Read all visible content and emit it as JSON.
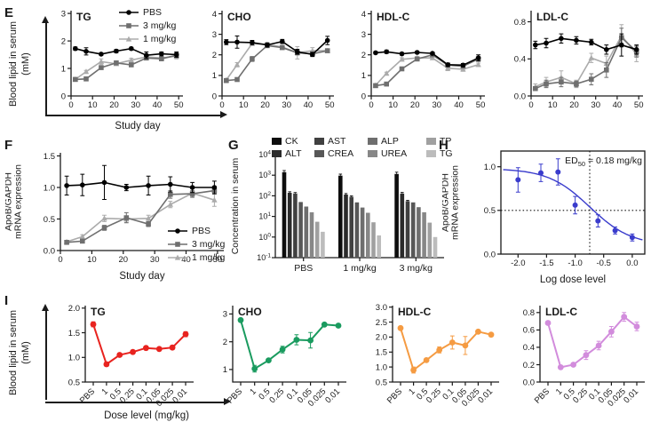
{
  "figure": {
    "panel_letters": {
      "E": "E",
      "F": "F",
      "G": "G",
      "H": "H",
      "I": "I"
    }
  },
  "panels": {
    "E": {
      "ylabel_line1": "Blood lipid in serum",
      "ylabel_line2": "(mM)",
      "xlabel": "Study day"
    },
    "I": {
      "ylabel_line1": "Blood lipid in serum",
      "ylabel_line2": "(mM)",
      "xlabel": "Dose level (mg/kg)"
    }
  },
  "legends": {
    "lipid": {
      "items": [
        {
          "label": "PBS",
          "color": "#000000",
          "marker": "circle"
        },
        {
          "label": "3 mg/kg",
          "color": "#6f6f6f",
          "marker": "square"
        },
        {
          "label": "1 mg/kg",
          "color": "#ababab",
          "marker": "triangle"
        }
      ]
    },
    "serum": {
      "items": [
        {
          "label": "CK",
          "color": "#0d0d0d"
        },
        {
          "label": "AST",
          "color": "#404040"
        },
        {
          "label": "ALP",
          "color": "#6e6e6e"
        },
        {
          "label": "TP",
          "color": "#a0a0a0"
        },
        {
          "label": "ALT",
          "color": "#2b2b2b"
        },
        {
          "label": "CREA",
          "color": "#575757"
        },
        {
          "label": "UREA",
          "color": "#878787"
        },
        {
          "label": "TG",
          "color": "#bcbcbc"
        }
      ]
    }
  },
  "chart_data": [
    {
      "id": "e_tg",
      "type": "line",
      "title": "TG",
      "title_color": "#e8231f",
      "x": [
        2,
        7,
        14,
        21,
        28,
        35,
        42,
        49
      ],
      "xlim": [
        0,
        52
      ],
      "xticks": [
        0,
        10,
        20,
        30,
        40,
        50
      ],
      "ylim": [
        0,
        3.1
      ],
      "yticks": [
        0,
        1,
        2,
        3
      ],
      "ydec": 0,
      "series": [
        {
          "name": "PBS",
          "color": "#000000",
          "marker": "circle",
          "values": [
            1.72,
            1.62,
            1.52,
            1.63,
            1.72,
            1.48,
            1.53,
            1.5
          ],
          "errors": [
            0.06,
            0.13,
            0.04,
            0.06,
            0.05,
            0.12,
            0.07,
            0.1
          ]
        },
        {
          "name": "3 mg/kg",
          "color": "#6f6f6f",
          "marker": "square",
          "values": [
            0.6,
            0.62,
            1.03,
            1.2,
            1.13,
            1.38,
            1.35,
            1.48
          ],
          "errors": [
            0.03,
            0.03,
            0.05,
            0.06,
            0.05,
            0.05,
            0.05,
            0.08
          ]
        },
        {
          "name": "1 mg/kg",
          "color": "#ababab",
          "marker": "triangle",
          "values": [
            0.6,
            0.88,
            1.25,
            1.17,
            1.3,
            1.42,
            1.38,
            1.45
          ],
          "errors": [
            0.03,
            0.05,
            0.1,
            0.06,
            0.07,
            0.05,
            0.06,
            0.1
          ]
        }
      ]
    },
    {
      "id": "e_cho",
      "type": "line",
      "title": "CHO",
      "title_color": "#1a9b5f",
      "x": [
        2,
        7,
        14,
        21,
        28,
        35,
        42,
        49
      ],
      "xlim": [
        0,
        52
      ],
      "xticks": [
        0,
        10,
        20,
        30,
        40,
        50
      ],
      "ylim": [
        0,
        4.15
      ],
      "yticks": [
        0,
        1,
        2,
        3,
        4
      ],
      "ydec": 0,
      "series": [
        {
          "name": "PBS",
          "color": "#000000",
          "marker": "circle",
          "values": [
            2.62,
            2.62,
            2.6,
            2.48,
            2.65,
            2.15,
            2.02,
            2.7
          ],
          "errors": [
            0.12,
            0.3,
            0.1,
            0.1,
            0.1,
            0.12,
            0.1,
            0.2
          ]
        },
        {
          "name": "3 mg/kg",
          "color": "#6f6f6f",
          "marker": "square",
          "values": [
            0.75,
            0.8,
            1.8,
            2.45,
            2.35,
            2.1,
            2.05,
            2.2
          ],
          "errors": [
            0.05,
            0.05,
            0.12,
            0.1,
            0.08,
            0.1,
            0.08,
            0.08
          ]
        },
        {
          "name": "1 mg/kg",
          "color": "#ababab",
          "marker": "triangle",
          "values": [
            0.78,
            1.52,
            2.55,
            2.5,
            2.38,
            2.1,
            2.2,
            2.2
          ],
          "errors": [
            0.05,
            0.1,
            0.1,
            0.08,
            0.08,
            0.3,
            0.15,
            0.08
          ]
        }
      ]
    },
    {
      "id": "e_hdl",
      "type": "line",
      "title": "HDL-C",
      "title_color": "#f59b42",
      "x": [
        2,
        7,
        14,
        21,
        28,
        35,
        42,
        49
      ],
      "xlim": [
        0,
        52
      ],
      "xticks": [
        0,
        10,
        20,
        30,
        40,
        50
      ],
      "ylim": [
        0,
        4.15
      ],
      "yticks": [
        0,
        1,
        2,
        3,
        4
      ],
      "ydec": 0,
      "series": [
        {
          "name": "PBS",
          "color": "#000000",
          "marker": "circle",
          "values": [
            2.1,
            2.15,
            2.05,
            2.12,
            2.07,
            1.52,
            1.5,
            1.85
          ],
          "errors": [
            0.06,
            0.08,
            0.05,
            0.06,
            0.05,
            0.08,
            0.08,
            0.15
          ]
        },
        {
          "name": "3 mg/kg",
          "color": "#6f6f6f",
          "marker": "square",
          "values": [
            0.5,
            0.58,
            1.32,
            1.8,
            2.0,
            1.5,
            1.45,
            1.8
          ],
          "errors": [
            0.04,
            0.04,
            0.08,
            0.06,
            0.06,
            0.08,
            0.08,
            0.1
          ]
        },
        {
          "name": "1 mg/kg",
          "color": "#ababab",
          "marker": "triangle",
          "values": [
            0.52,
            1.1,
            1.78,
            1.85,
            1.85,
            1.35,
            1.3,
            1.52
          ],
          "errors": [
            0.04,
            0.06,
            0.08,
            0.06,
            0.06,
            0.12,
            0.1,
            0.08
          ]
        }
      ]
    },
    {
      "id": "e_ldl",
      "type": "line",
      "title": "LDL-C",
      "title_color": "#d28cdc",
      "x": [
        2,
        7,
        14,
        21,
        28,
        35,
        42,
        49
      ],
      "xlim": [
        0,
        52
      ],
      "xticks": [
        0,
        10,
        20,
        30,
        40,
        50
      ],
      "ylim": [
        0,
        0.92
      ],
      "yticks": [
        0,
        0.4,
        0.8
      ],
      "ydec": 1,
      "series": [
        {
          "name": "PBS",
          "color": "#000000",
          "marker": "circle",
          "values": [
            0.55,
            0.57,
            0.62,
            0.6,
            0.58,
            0.5,
            0.55,
            0.5
          ],
          "errors": [
            0.04,
            0.05,
            0.05,
            0.04,
            0.03,
            0.05,
            0.12,
            0.05
          ]
        },
        {
          "name": "3 mg/kg",
          "color": "#6f6f6f",
          "marker": "square",
          "values": [
            0.08,
            0.13,
            0.15,
            0.13,
            0.18,
            0.28,
            0.63,
            0.48
          ],
          "errors": [
            0.02,
            0.04,
            0.05,
            0.03,
            0.06,
            0.08,
            0.1,
            0.06
          ]
        },
        {
          "name": "1 mg/kg",
          "color": "#ababab",
          "marker": "triangle",
          "values": [
            0.1,
            0.15,
            0.2,
            0.13,
            0.41,
            0.35,
            0.65,
            0.45
          ],
          "errors": [
            0.03,
            0.05,
            0.07,
            0.04,
            0.05,
            0.08,
            0.12,
            0.08
          ]
        }
      ]
    },
    {
      "id": "f",
      "type": "line",
      "ylabel": [
        "ApoB/GAPDH",
        "mRNA expression"
      ],
      "xlabel": "Study day",
      "x": [
        2,
        7,
        14,
        21,
        28,
        35,
        42,
        49
      ],
      "xlim": [
        0,
        52
      ],
      "xticks": [
        0,
        10,
        20,
        30,
        40,
        50
      ],
      "ylim": [
        0,
        1.55
      ],
      "yticks": [
        0,
        0.5,
        1.0,
        1.5
      ],
      "ydec": 1,
      "series": [
        {
          "name": "PBS",
          "color": "#000000",
          "marker": "circle",
          "values": [
            1.03,
            1.04,
            1.08,
            1.0,
            1.03,
            1.05,
            1.0,
            1.0
          ],
          "errors": [
            0.15,
            0.17,
            0.27,
            0.05,
            0.15,
            0.12,
            0.08,
            0.1
          ]
        },
        {
          "name": "3 mg/kg",
          "color": "#6f6f6f",
          "marker": "square",
          "values": [
            0.13,
            0.15,
            0.36,
            0.52,
            0.42,
            0.89,
            0.9,
            0.95
          ],
          "errors": [
            0.02,
            0.02,
            0.04,
            0.08,
            0.04,
            0.06,
            0.05,
            0.05
          ]
        },
        {
          "name": "1 mg/kg",
          "color": "#ababab",
          "marker": "triangle",
          "values": [
            0.14,
            0.22,
            0.51,
            0.5,
            0.51,
            0.73,
            0.91,
            0.8
          ],
          "errors": [
            0.02,
            0.03,
            0.05,
            0.05,
            0.05,
            0.05,
            0.07,
            0.1
          ]
        }
      ]
    },
    {
      "id": "g",
      "type": "bar-log",
      "ylabel": [
        "Concentration in serum"
      ],
      "ylog": [
        -1,
        4
      ],
      "groups": [
        "PBS",
        "1 mg/kg",
        "3 mg/kg"
      ],
      "series": [
        {
          "name": "CK",
          "color": "#0d0d0d",
          "values": [
            1400,
            950,
            1150
          ],
          "errors": [
            300,
            180,
            250
          ]
        },
        {
          "name": "ALT",
          "color": "#2b2b2b",
          "values": [
            140,
            115,
            130
          ],
          "errors": [
            18,
            14,
            16
          ]
        },
        {
          "name": "AST",
          "color": "#404040",
          "values": [
            130,
            90,
            55
          ],
          "errors": [
            14,
            10,
            6
          ]
        },
        {
          "name": "CREA",
          "color": "#575757",
          "values": [
            50,
            48,
            48
          ],
          "errors": [
            0,
            0,
            0
          ]
        },
        {
          "name": "ALP",
          "color": "#6e6e6e",
          "values": [
            30,
            27,
            28
          ],
          "errors": [
            0,
            0,
            0
          ]
        },
        {
          "name": "UREA",
          "color": "#878787",
          "values": [
            16,
            15,
            16
          ],
          "errors": [
            0,
            0,
            0
          ]
        },
        {
          "name": "TP",
          "color": "#a0a0a0",
          "values": [
            5.5,
            5.2,
            5.0
          ],
          "errors": [
            0,
            0,
            0
          ]
        },
        {
          "name": "TG",
          "color": "#bcbcbc",
          "values": [
            1.8,
            1.2,
            1.0
          ],
          "errors": [
            0,
            0,
            0
          ]
        }
      ]
    },
    {
      "id": "h",
      "type": "scatter",
      "no_line": true,
      "box": "full",
      "msize": 3,
      "ylabel": [
        "ApoB/GAPDH",
        "mRNA expression"
      ],
      "xlabel": "Log dose level",
      "x": [
        -2.0,
        -1.6,
        -1.3,
        -1.0,
        -0.6,
        -0.3,
        0.0
      ],
      "xlim": [
        -2.3,
        0.22
      ],
      "xticks": [
        -2.0,
        -1.5,
        -1.0,
        -0.5,
        0.0
      ],
      "xdec": 1,
      "ylim": [
        0,
        1.18
      ],
      "yticks": [
        0,
        0.5,
        1.0
      ],
      "ydec": 1,
      "hline": 0.5,
      "vline": -0.745,
      "fit": {
        "top": 0.98,
        "bottom": 0.1,
        "x0": -0.745,
        "hill": 1.2
      },
      "annotation": {
        "pre": "ED",
        "sub": "50",
        "post": " = 0.18 mg/kg"
      },
      "series": [
        {
          "name": "ApoB/GAPDH",
          "color": "#3a3ccc",
          "marker": "circle",
          "values": [
            0.85,
            0.93,
            0.94,
            0.56,
            0.38,
            0.27,
            0.19
          ],
          "errors": [
            0.14,
            0.1,
            0.15,
            0.1,
            0.07,
            0.04,
            0.04
          ]
        }
      ]
    },
    {
      "id": "i_tg",
      "type": "cat-line",
      "title": "TG",
      "title_color": "#e8231f",
      "categories": [
        "PBS",
        "1",
        "0.5",
        "0.25",
        "0.1",
        "0.05",
        "0.025",
        "0.01"
      ],
      "ylim": [
        0.5,
        2.05
      ],
      "yticks": [
        0.5,
        1.0,
        1.5,
        2.0
      ],
      "ydec": 1,
      "lw": 2,
      "msize": 3.4,
      "series": [
        {
          "name": "TG",
          "color": "#e8231f",
          "marker": "circle",
          "values": [
            1.67,
            0.86,
            1.05,
            1.11,
            1.19,
            1.17,
            1.2,
            1.47
          ],
          "errors": [
            0.05,
            0.04,
            0.03,
            0.03,
            0.04,
            0.03,
            0.04,
            0.05
          ]
        }
      ]
    },
    {
      "id": "i_cho",
      "type": "cat-line",
      "title": "CHO",
      "title_color": "#1a9b5f",
      "categories": [
        "PBS",
        "1",
        "0.5",
        "0.25",
        "0.1",
        "0.05",
        "0.025",
        "0.01"
      ],
      "ylim": [
        0.55,
        3.3
      ],
      "yticks": [
        1,
        2,
        3
      ],
      "ydec": 0,
      "lw": 2,
      "msize": 3.4,
      "series": [
        {
          "name": "CHO",
          "color": "#1a9b5f",
          "marker": "circle",
          "values": [
            2.78,
            1.03,
            1.33,
            1.72,
            2.07,
            2.05,
            2.62,
            2.58
          ],
          "errors": [
            0.04,
            0.12,
            0.05,
            0.12,
            0.18,
            0.28,
            0.05,
            0.05
          ]
        }
      ]
    },
    {
      "id": "i_hdl",
      "type": "cat-line",
      "title": "HDL-C",
      "title_color": "#f59b42",
      "categories": [
        "PBS",
        "1",
        "0.5",
        "0.25",
        "0.1",
        "0.05",
        "0.025",
        "0.01"
      ],
      "ylim": [
        0.5,
        3.05
      ],
      "yticks": [
        0.5,
        1.0,
        1.5,
        2.0,
        2.5,
        3.0
      ],
      "ydec": 1,
      "lw": 2,
      "msize": 3.4,
      "series": [
        {
          "name": "HDL-C",
          "color": "#f59b42",
          "marker": "circle",
          "values": [
            2.3,
            0.9,
            1.23,
            1.57,
            1.82,
            1.72,
            2.18,
            2.08
          ],
          "errors": [
            0.04,
            0.1,
            0.04,
            0.1,
            0.22,
            0.3,
            0.05,
            0.05
          ]
        }
      ]
    },
    {
      "id": "i_ldl",
      "type": "cat-line",
      "title": "LDL-C",
      "title_color": "#d28cdc",
      "categories": [
        "PBS",
        "1",
        "0.5",
        "0.25",
        "0.1",
        "0.05",
        "0.025",
        "0.01"
      ],
      "ylim": [
        0,
        0.88
      ],
      "yticks": [
        0,
        0.2,
        0.4,
        0.6,
        0.8
      ],
      "ydec": 1,
      "lw": 2,
      "msize": 3.4,
      "series": [
        {
          "name": "LDL-C",
          "color": "#d28cdc",
          "marker": "circle",
          "values": [
            0.68,
            0.17,
            0.2,
            0.31,
            0.42,
            0.58,
            0.75,
            0.64
          ],
          "errors": [
            0.02,
            0.02,
            0.02,
            0.05,
            0.05,
            0.06,
            0.05,
            0.05
          ]
        }
      ]
    }
  ]
}
